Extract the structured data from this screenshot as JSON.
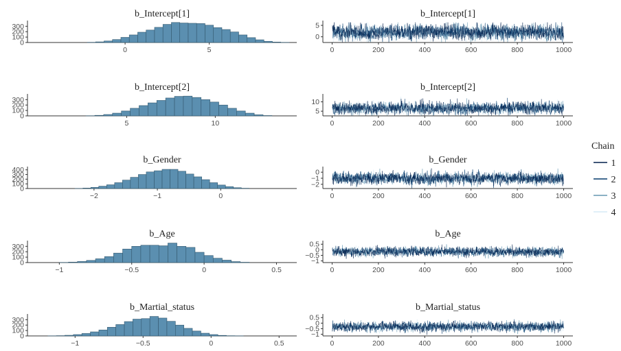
{
  "legend": {
    "title": "Chain",
    "position": "right",
    "items": [
      {
        "label": "1",
        "color": "#011f4b"
      },
      {
        "label": "2",
        "color": "#03396c"
      },
      {
        "label": "3",
        "color": "#6497b1"
      },
      {
        "label": "4",
        "color": "#d6eaf5"
      }
    ]
  },
  "colors": {
    "hist_fill": "#5b8fb0",
    "hist_edge": "#33586e",
    "axis": "#333333"
  },
  "chart_data": [
    {
      "type": "bar",
      "title": "b_Intercept[1]",
      "x_ticks": [
        0,
        5
      ],
      "y_ticks": [
        0,
        100,
        200,
        300
      ],
      "xlim": [
        -5.8,
        10.2
      ],
      "ylim": [
        0,
        380
      ],
      "bin_start": -2.25,
      "bin_width": 0.5,
      "counts": [
        4,
        12,
        28,
        55,
        95,
        140,
        190,
        230,
        280,
        335,
        370,
        360,
        355,
        350,
        320,
        275,
        240,
        195,
        140,
        90,
        50,
        22,
        8,
        3
      ]
    },
    {
      "type": "line",
      "title": "b_Intercept[1]",
      "x_ticks": [
        0,
        200,
        400,
        600,
        800,
        1000
      ],
      "y_ticks": [
        0,
        5
      ],
      "xlim": [
        -40,
        1040
      ],
      "ylim": [
        -2.5,
        6.5
      ],
      "iterations": 1000,
      "center": 1.9,
      "spread": 1.7
    },
    {
      "type": "bar",
      "title": "b_Intercept[2]",
      "x_ticks": [
        5,
        10
      ],
      "y_ticks": [
        0,
        100,
        200,
        300
      ],
      "xlim": [
        -0.6,
        14.6
      ],
      "ylim": [
        0,
        380
      ],
      "bin_start": 2.7,
      "bin_width": 0.5,
      "counts": [
        3,
        10,
        25,
        50,
        90,
        140,
        190,
        240,
        285,
        330,
        360,
        365,
        340,
        300,
        255,
        200,
        140,
        90,
        50,
        20,
        6
      ]
    },
    {
      "type": "line",
      "title": "b_Intercept[2]",
      "x_ticks": [
        0,
        200,
        400,
        600,
        800,
        1000
      ],
      "y_ticks": [
        5,
        10
      ],
      "xlim": [
        -40,
        1040
      ],
      "ylim": [
        2.5,
        13.5
      ],
      "iterations": 1000,
      "center": 6.6,
      "spread": 1.6
    },
    {
      "type": "bar",
      "title": "b_Gender",
      "x_ticks": [
        -2,
        -1,
        0
      ],
      "y_ticks": [
        0,
        100,
        200,
        300,
        400
      ],
      "xlim": [
        -3.05,
        1.2
      ],
      "ylim": [
        0,
        440
      ],
      "bin_start": -2.3,
      "bin_width": 0.125,
      "counts": [
        3,
        10,
        25,
        50,
        80,
        125,
        180,
        240,
        300,
        355,
        380,
        410,
        410,
        370,
        310,
        250,
        190,
        125,
        75,
        40,
        18,
        6
      ]
    },
    {
      "type": "line",
      "title": "b_Gender",
      "x_ticks": [
        0,
        200,
        400,
        600,
        800,
        1000
      ],
      "y_ticks": [
        0,
        -1,
        -2
      ],
      "xlim": [
        -40,
        1040
      ],
      "ylim": [
        -2.7,
        0.7
      ],
      "iterations": 1000,
      "center": -1.0,
      "spread": 0.5
    },
    {
      "type": "bar",
      "title": "b_Age",
      "x_ticks": [
        -1.0,
        -0.5,
        0.0,
        0.5
      ],
      "y_ticks": [
        0,
        100,
        200,
        300
      ],
      "xlim": [
        -1.22,
        0.64
      ],
      "ylim": [
        0,
        380
      ],
      "bin_start": -1.0,
      "bin_width": 0.0625,
      "counts": [
        3,
        8,
        20,
        40,
        70,
        110,
        175,
        250,
        300,
        320,
        320,
        310,
        360,
        300,
        280,
        190,
        130,
        80,
        45,
        18,
        6
      ]
    },
    {
      "type": "line",
      "title": "b_Age",
      "x_ticks": [
        0,
        200,
        400,
        600,
        800,
        1000
      ],
      "y_ticks": [
        0.5,
        0.0,
        -0.5,
        -1.0
      ],
      "xlim": [
        -40,
        1040
      ],
      "ylim": [
        -1.15,
        0.7
      ],
      "iterations": 1000,
      "center": -0.17,
      "spread": 0.22
    },
    {
      "type": "bar",
      "title": "b_Martial_status",
      "x_ticks": [
        -1.0,
        -0.5,
        0.0,
        0.5
      ],
      "y_ticks": [
        0,
        100,
        200,
        300
      ],
      "xlim": [
        -1.35,
        0.63
      ],
      "ylim": [
        0,
        380
      ],
      "bin_start": -1.2,
      "bin_width": 0.0625,
      "counts": [
        2,
        5,
        12,
        25,
        45,
        75,
        110,
        160,
        210,
        265,
        310,
        320,
        360,
        330,
        270,
        200,
        140,
        90,
        50,
        25,
        10,
        4,
        2
      ]
    },
    {
      "type": "line",
      "title": "b_Martial_status",
      "x_ticks": [
        0,
        200,
        400,
        600,
        800,
        1000
      ],
      "y_ticks": [
        0.5,
        0.0,
        -0.5,
        -1.0
      ],
      "xlim": [
        -40,
        1040
      ],
      "ylim": [
        -1.15,
        0.7
      ],
      "iterations": 1000,
      "center": -0.32,
      "spread": 0.22
    }
  ]
}
